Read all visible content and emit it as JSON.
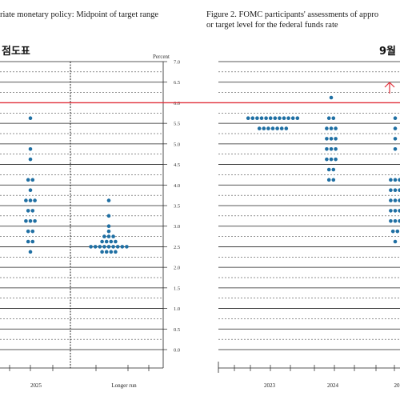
{
  "left_panel": {
    "title_line1": "riate monetary policy: Midpoint of target range",
    "overlay_label": "점도표",
    "yaxis_unit": "Percent"
  },
  "right_panel": {
    "title_line1": "Figure 2.  FOMC participants' assessments of appro",
    "title_line2": "or target level for the federal funds rate",
    "overlay_label": "9월"
  },
  "colors": {
    "dot": "#1f6fa3",
    "highlight_line": "#e0303a",
    "grid": "#222222"
  },
  "chart_data": [
    {
      "type": "scatter",
      "panel": "left",
      "ylabel": "Percent",
      "ylim": [
        0,
        7
      ],
      "yticks": [
        "0.0",
        "0.5",
        "1.0",
        "1.5",
        "2.0",
        "2.5",
        "3.0",
        "3.5",
        "4.0",
        "4.5",
        "5.0",
        "5.5",
        "6.0",
        "6.5",
        "7.0"
      ],
      "categories": [
        "2025",
        "Longer run"
      ],
      "dots": [
        {
          "x": "2025",
          "y": 5.625,
          "count": 1
        },
        {
          "x": "2025",
          "y": 4.875,
          "count": 1
        },
        {
          "x": "2025",
          "y": 4.625,
          "count": 1
        },
        {
          "x": "2025",
          "y": 4.125,
          "count": 2
        },
        {
          "x": "2025",
          "y": 3.875,
          "count": 1
        },
        {
          "x": "2025",
          "y": 3.625,
          "count": 3
        },
        {
          "x": "2025",
          "y": 3.375,
          "count": 2
        },
        {
          "x": "2025",
          "y": 3.125,
          "count": 3
        },
        {
          "x": "2025",
          "y": 2.875,
          "count": 2
        },
        {
          "x": "2025",
          "y": 2.625,
          "count": 2
        },
        {
          "x": "2025",
          "y": 2.375,
          "count": 1
        },
        {
          "x": "Longer run",
          "y": 3.625,
          "count": 1
        },
        {
          "x": "Longer run",
          "y": 3.25,
          "count": 1
        },
        {
          "x": "Longer run",
          "y": 3.0,
          "count": 1
        },
        {
          "x": "Longer run",
          "y": 2.875,
          "count": 1
        },
        {
          "x": "Longer run",
          "y": 2.75,
          "count": 3
        },
        {
          "x": "Longer run",
          "y": 2.625,
          "count": 4
        },
        {
          "x": "Longer run",
          "y": 2.5,
          "count": 9
        },
        {
          "x": "Longer run",
          "y": 2.375,
          "count": 4
        }
      ]
    },
    {
      "type": "scatter",
      "panel": "right",
      "ylim": [
        0,
        7
      ],
      "categories": [
        "2023",
        "2024",
        "20"
      ],
      "highlight_y": 6.0,
      "dots": [
        {
          "x": "2023",
          "y": 5.625,
          "count": 12
        },
        {
          "x": "2023",
          "y": 5.375,
          "count": 7
        },
        {
          "x": "2024",
          "y": 6.125,
          "count": 1
        },
        {
          "x": "2024",
          "y": 5.625,
          "count": 2
        },
        {
          "x": "2024",
          "y": 5.375,
          "count": 3
        },
        {
          "x": "2024",
          "y": 5.125,
          "count": 3
        },
        {
          "x": "2024",
          "y": 4.875,
          "count": 3
        },
        {
          "x": "2024",
          "y": 4.625,
          "count": 3
        },
        {
          "x": "2024",
          "y": 4.375,
          "count": 2
        },
        {
          "x": "2024",
          "y": 4.125,
          "count": 2
        },
        {
          "x": "20",
          "y": 5.625,
          "count": 1
        },
        {
          "x": "20",
          "y": 5.375,
          "count": 1
        },
        {
          "x": "20",
          "y": 5.125,
          "count": 1
        },
        {
          "x": "20",
          "y": 4.875,
          "count": 1
        },
        {
          "x": "20",
          "y": 4.125,
          "count": 3
        },
        {
          "x": "20",
          "y": 3.875,
          "count": 3
        },
        {
          "x": "20",
          "y": 3.625,
          "count": 3
        },
        {
          "x": "20",
          "y": 3.375,
          "count": 3
        },
        {
          "x": "20",
          "y": 3.125,
          "count": 3
        },
        {
          "x": "20",
          "y": 2.875,
          "count": 2
        },
        {
          "x": "20",
          "y": 2.625,
          "count": 1
        }
      ]
    }
  ]
}
